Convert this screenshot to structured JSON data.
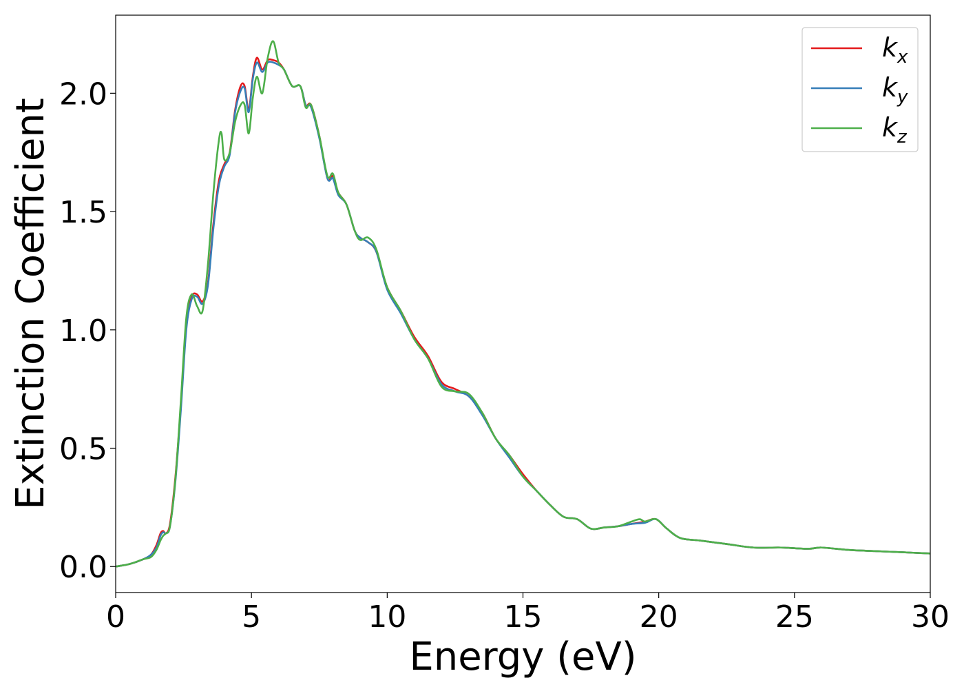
{
  "chart_data": {
    "type": "line",
    "title": "",
    "xlabel": "Energy (eV)",
    "ylabel": "Extinction Coefficient",
    "xlim": [
      0,
      30
    ],
    "ylim": [
      -0.11,
      2.33
    ],
    "xticks": [
      0,
      5,
      10,
      15,
      20,
      25,
      30
    ],
    "xtick_labels": [
      "0",
      "5",
      "10",
      "15",
      "20",
      "25",
      "30"
    ],
    "yticks": [
      0.0,
      0.5,
      1.0,
      1.5,
      2.0
    ],
    "ytick_labels": [
      "0.0",
      "0.5",
      "1.0",
      "1.5",
      "2.0"
    ],
    "grid": false,
    "legend_position": "top-right",
    "series": [
      {
        "name": "k",
        "subscript": "x",
        "color": "#e41a1c",
        "x": [
          0,
          0.5,
          1.0,
          1.3,
          1.5,
          1.65,
          1.75,
          1.85,
          2.0,
          2.2,
          2.4,
          2.6,
          2.8,
          3.0,
          3.2,
          3.4,
          3.6,
          3.8,
          4.0,
          4.2,
          4.4,
          4.6,
          4.75,
          4.9,
          5.05,
          5.2,
          5.4,
          5.6,
          5.8,
          6.0,
          6.2,
          6.5,
          6.8,
          7.0,
          7.2,
          7.5,
          7.8,
          8.0,
          8.2,
          8.5,
          8.8,
          9.0,
          9.3,
          9.6,
          10.0,
          10.5,
          11.0,
          11.5,
          12.0,
          12.5,
          13.0,
          13.5,
          14.0,
          14.5,
          15.0,
          15.5,
          16.0,
          16.5,
          17.0,
          17.5,
          18.0,
          18.5,
          19.0,
          19.5,
          19.9,
          20.3,
          20.8,
          21.5,
          22.5,
          23.5,
          24.5,
          25.5,
          26.0,
          27.0,
          28.0,
          29.0,
          30.0
        ],
        "y": [
          0.0,
          0.01,
          0.03,
          0.05,
          0.09,
          0.14,
          0.15,
          0.14,
          0.18,
          0.38,
          0.68,
          1.02,
          1.14,
          1.15,
          1.12,
          1.2,
          1.45,
          1.63,
          1.7,
          1.75,
          1.93,
          2.03,
          2.03,
          1.93,
          2.07,
          2.15,
          2.1,
          2.14,
          2.14,
          2.13,
          2.1,
          2.03,
          2.03,
          1.95,
          1.95,
          1.82,
          1.64,
          1.65,
          1.58,
          1.53,
          1.42,
          1.39,
          1.37,
          1.33,
          1.18,
          1.08,
          0.97,
          0.89,
          0.78,
          0.75,
          0.72,
          0.65,
          0.54,
          0.47,
          0.39,
          0.32,
          0.26,
          0.21,
          0.2,
          0.16,
          0.165,
          0.17,
          0.18,
          0.19,
          0.2,
          0.16,
          0.12,
          0.11,
          0.095,
          0.08,
          0.08,
          0.075,
          0.08,
          0.07,
          0.065,
          0.06,
          0.055
        ]
      },
      {
        "name": "k",
        "subscript": "y",
        "color": "#377eb8",
        "x": [
          0,
          0.5,
          1.0,
          1.3,
          1.5,
          1.65,
          1.75,
          1.85,
          2.0,
          2.2,
          2.4,
          2.6,
          2.8,
          3.0,
          3.2,
          3.4,
          3.6,
          3.8,
          4.0,
          4.2,
          4.4,
          4.6,
          4.75,
          4.9,
          5.05,
          5.2,
          5.4,
          5.6,
          5.8,
          6.0,
          6.2,
          6.5,
          6.8,
          7.0,
          7.2,
          7.5,
          7.8,
          8.0,
          8.2,
          8.5,
          8.8,
          9.0,
          9.3,
          9.6,
          10.0,
          10.5,
          11.0,
          11.5,
          12.0,
          12.5,
          13.0,
          13.5,
          14.0,
          14.5,
          15.0,
          15.5,
          16.0,
          16.5,
          17.0,
          17.5,
          18.0,
          18.5,
          19.0,
          19.5,
          19.9,
          20.3,
          20.8,
          21.5,
          22.5,
          23.5,
          24.5,
          25.5,
          26.0,
          27.0,
          28.0,
          29.0,
          30.0
        ],
        "y": [
          0.0,
          0.01,
          0.03,
          0.05,
          0.08,
          0.13,
          0.145,
          0.14,
          0.17,
          0.36,
          0.66,
          1.0,
          1.13,
          1.14,
          1.11,
          1.19,
          1.43,
          1.61,
          1.69,
          1.74,
          1.92,
          2.01,
          2.02,
          1.92,
          2.06,
          2.13,
          2.09,
          2.13,
          2.13,
          2.12,
          2.1,
          2.03,
          2.03,
          1.95,
          1.94,
          1.81,
          1.64,
          1.64,
          1.57,
          1.53,
          1.42,
          1.39,
          1.37,
          1.33,
          1.17,
          1.07,
          0.96,
          0.88,
          0.77,
          0.74,
          0.72,
          0.64,
          0.54,
          0.46,
          0.38,
          0.32,
          0.26,
          0.21,
          0.2,
          0.16,
          0.165,
          0.17,
          0.18,
          0.185,
          0.2,
          0.16,
          0.12,
          0.11,
          0.095,
          0.08,
          0.08,
          0.075,
          0.08,
          0.07,
          0.065,
          0.06,
          0.055
        ]
      },
      {
        "name": "k",
        "subscript": "z",
        "color": "#4daf4a",
        "x": [
          0,
          0.5,
          1.0,
          1.3,
          1.5,
          1.65,
          1.75,
          1.85,
          2.0,
          2.2,
          2.4,
          2.6,
          2.8,
          3.0,
          3.2,
          3.4,
          3.6,
          3.8,
          3.9,
          4.0,
          4.2,
          4.4,
          4.6,
          4.75,
          4.9,
          5.05,
          5.2,
          5.4,
          5.6,
          5.8,
          6.0,
          6.2,
          6.5,
          6.8,
          7.0,
          7.2,
          7.5,
          7.8,
          8.0,
          8.2,
          8.5,
          8.8,
          9.0,
          9.3,
          9.6,
          10.0,
          10.5,
          11.0,
          11.5,
          12.0,
          12.5,
          13.0,
          13.5,
          14.0,
          14.5,
          15.0,
          15.5,
          16.0,
          16.5,
          17.0,
          17.5,
          18.0,
          18.5,
          19.0,
          19.3,
          19.5,
          19.9,
          20.3,
          20.8,
          21.5,
          22.5,
          23.5,
          24.5,
          25.5,
          26.0,
          27.0,
          28.0,
          29.0,
          30.0
        ],
        "y": [
          0.0,
          0.01,
          0.03,
          0.04,
          0.07,
          0.11,
          0.13,
          0.14,
          0.17,
          0.37,
          0.7,
          1.05,
          1.15,
          1.1,
          1.08,
          1.28,
          1.58,
          1.8,
          1.83,
          1.72,
          1.75,
          1.88,
          1.95,
          1.95,
          1.83,
          1.98,
          2.07,
          2.0,
          2.15,
          2.22,
          2.13,
          2.1,
          2.03,
          2.03,
          1.94,
          1.95,
          1.82,
          1.65,
          1.66,
          1.58,
          1.53,
          1.42,
          1.38,
          1.39,
          1.34,
          1.18,
          1.08,
          0.96,
          0.88,
          0.76,
          0.74,
          0.73,
          0.65,
          0.54,
          0.47,
          0.38,
          0.32,
          0.26,
          0.21,
          0.2,
          0.16,
          0.165,
          0.17,
          0.19,
          0.2,
          0.19,
          0.2,
          0.16,
          0.12,
          0.11,
          0.095,
          0.08,
          0.08,
          0.075,
          0.08,
          0.07,
          0.065,
          0.06,
          0.055
        ]
      }
    ]
  }
}
